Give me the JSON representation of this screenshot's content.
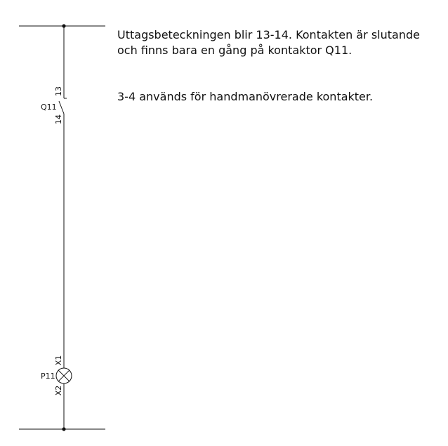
{
  "diagram": {
    "contact": {
      "designation": "Q11",
      "terminal_top": "13",
      "terminal_bottom": "14"
    },
    "lamp": {
      "designation": "P11",
      "terminal_top": "X1",
      "terminal_bottom": "X2"
    }
  },
  "text": {
    "paragraph1": "Uttagsbeteckningen blir 13-14. Kontakten är slutande och finns bara en gång på kontaktor Q11.",
    "paragraph2": "3-4 används för handmanövrerade kontakter."
  }
}
